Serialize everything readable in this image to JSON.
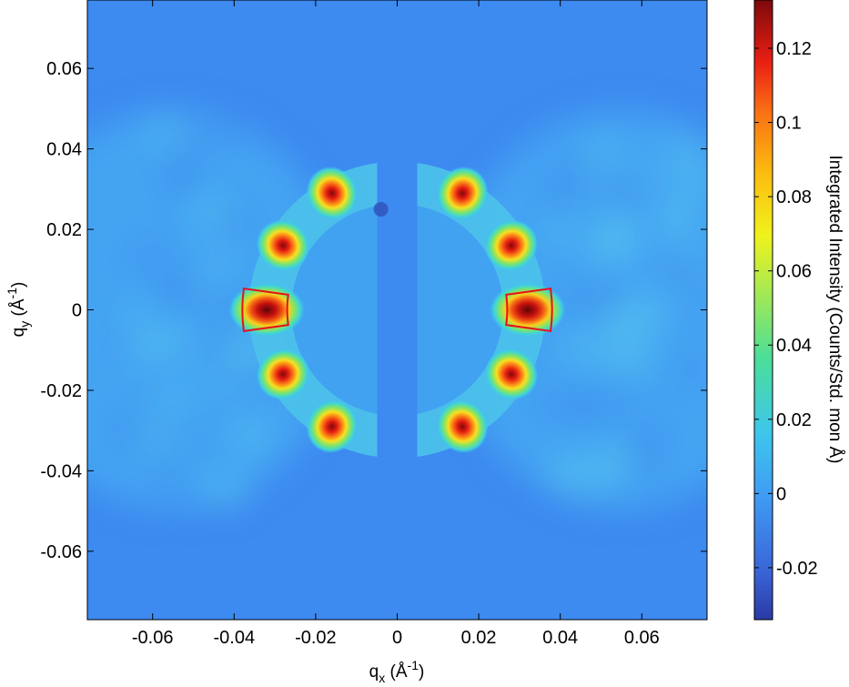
{
  "chart_data": {
    "type": "heatmap",
    "title": "",
    "xlabel": "q_x (Å^-1)",
    "ylabel": "q_y (Å^-1)",
    "xlabel_parts": {
      "main": "q",
      "sub": "x",
      "unit_open": " (Å",
      "sup": "-1",
      "unit_close": ")"
    },
    "ylabel_parts": {
      "main": "q",
      "sub": "y",
      "unit_open": " (Å",
      "sup": "-1",
      "unit_close": ")"
    },
    "xlim": [
      -0.076,
      0.076
    ],
    "ylim": [
      -0.077,
      0.077
    ],
    "x_ticks": [
      -0.06,
      -0.04,
      -0.02,
      0,
      0.02,
      0.04,
      0.06
    ],
    "x_tick_labels": [
      "-0.06",
      "-0.04",
      "-0.02",
      "0",
      "0.02",
      "0.04",
      "0.06"
    ],
    "y_ticks": [
      0.06,
      0.04,
      0.02,
      0,
      -0.02,
      -0.04,
      -0.06
    ],
    "y_tick_labels": [
      "0.06",
      "0.04",
      "0.02",
      "0",
      "-0.02",
      "-0.04",
      "-0.06"
    ],
    "colormap": "jet",
    "colorbar": {
      "label": "Integrated Intensity (Counts/Std. mon Å)",
      "range": [
        -0.034,
        0.133
      ],
      "ticks": [
        0.12,
        0.1,
        0.08,
        0.06,
        0.04,
        0.02,
        0,
        -0.02
      ],
      "tick_labels": [
        "0.12",
        "0.1",
        "0.08",
        "0.06",
        "0.04",
        "0.02",
        "0",
        "-0.02"
      ]
    },
    "background_level": -0.003,
    "diffuse_level": 0.012,
    "center_level": 0.003,
    "peaks": [
      {
        "qx": -0.032,
        "qy": 0.0,
        "intensity": 0.132
      },
      {
        "qx": -0.028,
        "qy": 0.016,
        "intensity": 0.115
      },
      {
        "qx": -0.028,
        "qy": -0.016,
        "intensity": 0.115
      },
      {
        "qx": -0.016,
        "qy": 0.029,
        "intensity": 0.115
      },
      {
        "qx": -0.016,
        "qy": -0.029,
        "intensity": 0.115
      },
      {
        "qx": 0.032,
        "qy": 0.0,
        "intensity": 0.133
      },
      {
        "qx": 0.028,
        "qy": 0.016,
        "intensity": 0.115
      },
      {
        "qx": 0.028,
        "qy": -0.016,
        "intensity": 0.115
      },
      {
        "qx": 0.016,
        "qy": 0.029,
        "intensity": 0.115
      },
      {
        "qx": 0.016,
        "qy": -0.029,
        "intensity": 0.115
      }
    ],
    "regions": [
      {
        "shape": "annular-sector",
        "q_range": [
          0.027,
          0.038
        ],
        "angle_deg": [
          172,
          188
        ],
        "color": "#e8101a"
      },
      {
        "shape": "annular-sector",
        "q_range": [
          0.027,
          0.038
        ],
        "angle_deg": [
          -8,
          8
        ],
        "color": "#e8101a"
      }
    ],
    "grid": false
  }
}
